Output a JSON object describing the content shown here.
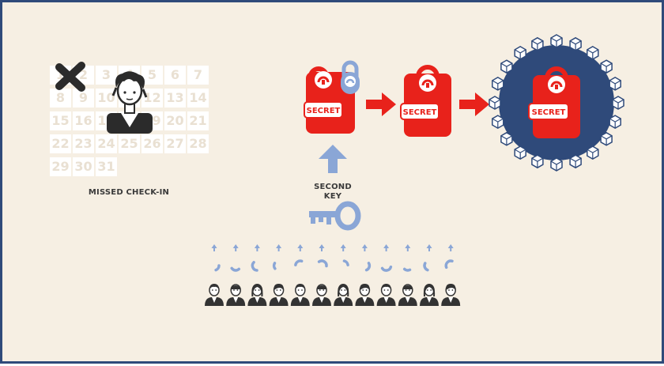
{
  "calendar": {
    "days": [
      "1",
      "2",
      "3",
      "4",
      "5",
      "6",
      "7",
      "8",
      "9",
      "10",
      "11",
      "12",
      "13",
      "14",
      "15",
      "16",
      "17",
      "18",
      "19",
      "20",
      "21",
      "22",
      "23",
      "24",
      "25",
      "26",
      "27",
      "28",
      "29",
      "30",
      "31"
    ]
  },
  "missed_label": "MISSED CHECK-IN",
  "second_key_label": [
    "SECOND",
    "KEY"
  ],
  "secret_label": "SECRET",
  "colors": {
    "background": "#f6efe3",
    "border": "#2f4a7a",
    "secret_red": "#e8221b",
    "lock_blue": "#8aa6d6",
    "vault_blue": "#2f4a7a",
    "dark": "#333333"
  },
  "people_count": 12,
  "icons": [
    "x-mark-icon",
    "person-icon",
    "padlock-icon",
    "key-icon",
    "arrow-right-icon",
    "arrow-up-icon",
    "key-fragment-icon",
    "blockchain-ring-icon"
  ]
}
